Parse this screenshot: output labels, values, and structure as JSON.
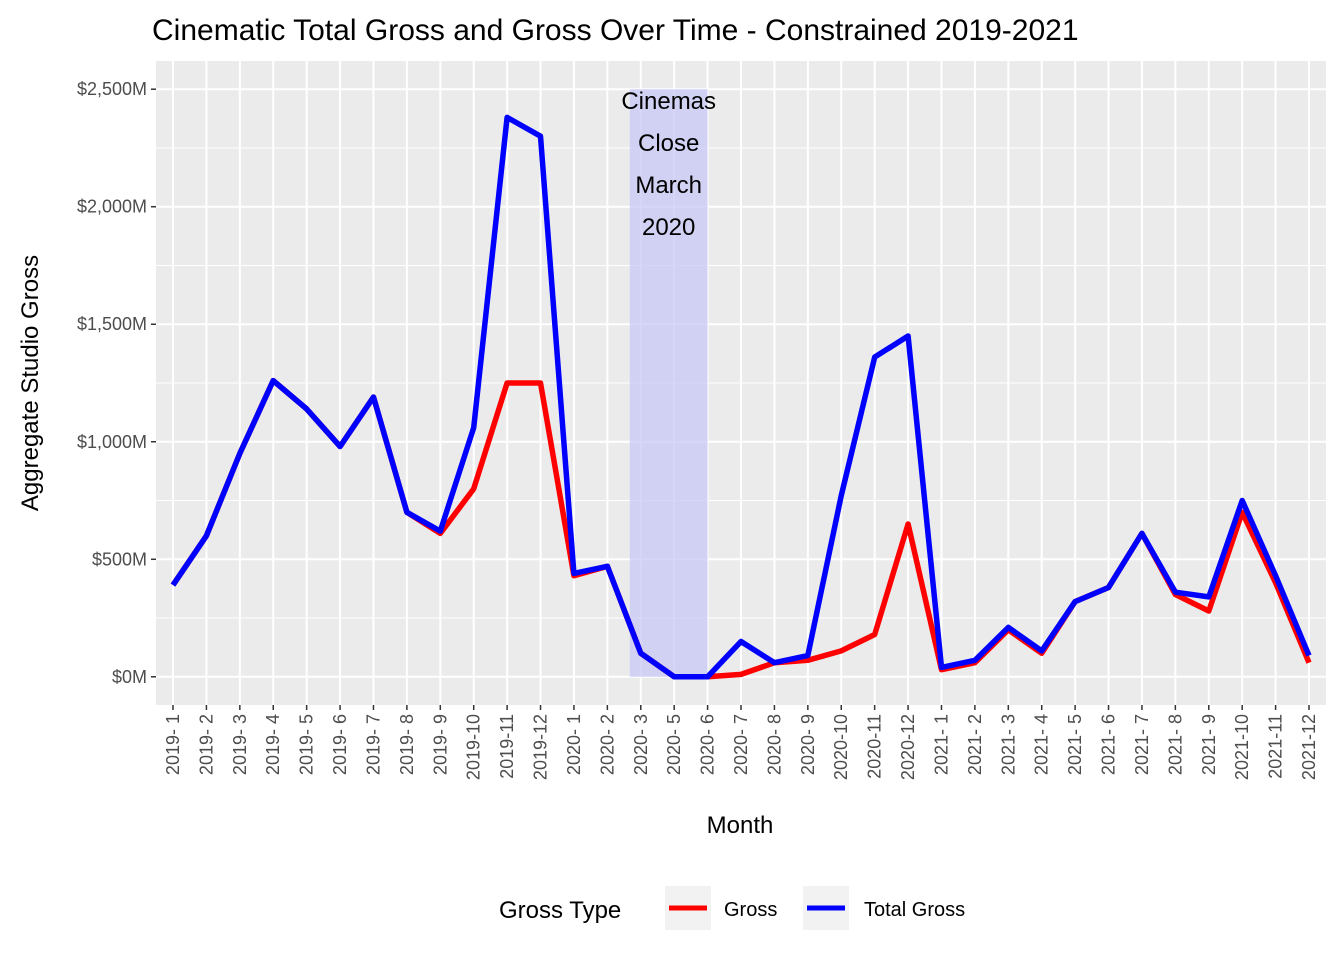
{
  "chart_data": {
    "type": "line",
    "title": "Cinematic Total Gross and Gross Over Time - Constrained 2019-2021",
    "xlabel": "Month",
    "ylabel": "Aggregate Studio Gross",
    "categories": [
      "2019- 1",
      "2019- 2",
      "2019- 3",
      "2019- 4",
      "2019- 5",
      "2019- 6",
      "2019- 7",
      "2019- 8",
      "2019- 9",
      "2019-10",
      "2019-11",
      "2019-12",
      "2020- 1",
      "2020- 2",
      "2020- 3",
      "2020- 5",
      "2020- 6",
      "2020- 7",
      "2020- 8",
      "2020- 9",
      "2020-10",
      "2020-11",
      "2020-12",
      "2021- 1",
      "2021- 2",
      "2021- 3",
      "2021- 4",
      "2021- 5",
      "2021- 6",
      "2021- 7",
      "2021- 8",
      "2021- 9",
      "2021-10",
      "2021-11",
      "2021-12"
    ],
    "ylim": [
      -120,
      2620
    ],
    "y_ticks": [
      0,
      500,
      1000,
      1500,
      2000,
      2500
    ],
    "y_tick_labels": [
      "$0M",
      "$500M",
      "$1,000M",
      "$1,500M",
      "$2,000M",
      "$2,500M"
    ],
    "series": [
      {
        "name": "Gross",
        "color": "#ff0000",
        "values": [
          390,
          600,
          950,
          1260,
          1140,
          980,
          1190,
          700,
          610,
          800,
          1250,
          1250,
          430,
          470,
          100,
          0,
          0,
          10,
          60,
          70,
          110,
          180,
          650,
          30,
          60,
          200,
          100,
          320,
          380,
          610,
          350,
          280,
          700,
          400,
          60
        ]
      },
      {
        "name": "Total Gross",
        "color": "#0000ff",
        "values": [
          390,
          600,
          950,
          1260,
          1140,
          980,
          1190,
          700,
          620,
          1060,
          2380,
          2300,
          440,
          470,
          100,
          0,
          0,
          150,
          60,
          90,
          770,
          1360,
          1450,
          40,
          70,
          210,
          110,
          320,
          380,
          610,
          360,
          340,
          750,
          430,
          90
        ]
      }
    ],
    "shaded_region": {
      "from": "2020- 3",
      "to": "2020- 6",
      "y_from": 0,
      "y_to": 2500,
      "color": "#c8c8f5",
      "annotation": [
        "Cinemas",
        "Close",
        "March",
        "2020"
      ]
    },
    "legend": {
      "title": "Gross Type",
      "placement": "bottom"
    },
    "grid": true
  }
}
